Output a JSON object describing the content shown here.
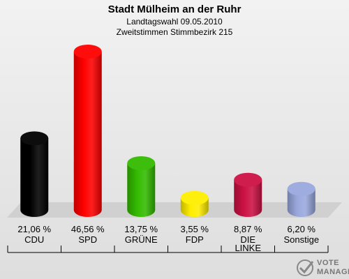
{
  "title": "Stadt Mülheim an der Ruhr",
  "subtitle1": "Landtagswahl 09.05.2010",
  "subtitle2": "Zweitstimmen Stimmbezirk 215",
  "logo": {
    "line1": "VOTE",
    "line2": "MANAGER"
  },
  "chart_data": {
    "type": "bar",
    "title": "Stadt Mülheim an der Ruhr",
    "subtitle": "Landtagswahl 09.05.2010 / Zweitstimmen Stimmbezirk 215",
    "categories": [
      "CDU",
      "SPD",
      "GRÜNE",
      "FDP",
      "DIE LINKE",
      "Sonstige"
    ],
    "values": [
      21.06,
      46.56,
      13.75,
      3.55,
      8.87,
      6.2
    ],
    "value_labels": [
      "21,06 %",
      "46,56 %",
      "13,75 %",
      "3,55 %",
      "8,87 %",
      "6,20 %"
    ],
    "colors": [
      "#000000",
      "#ff0000",
      "#33bb00",
      "#ffee00",
      "#cc1144",
      "#99a8dd"
    ],
    "grid": false,
    "legend": "none"
  }
}
